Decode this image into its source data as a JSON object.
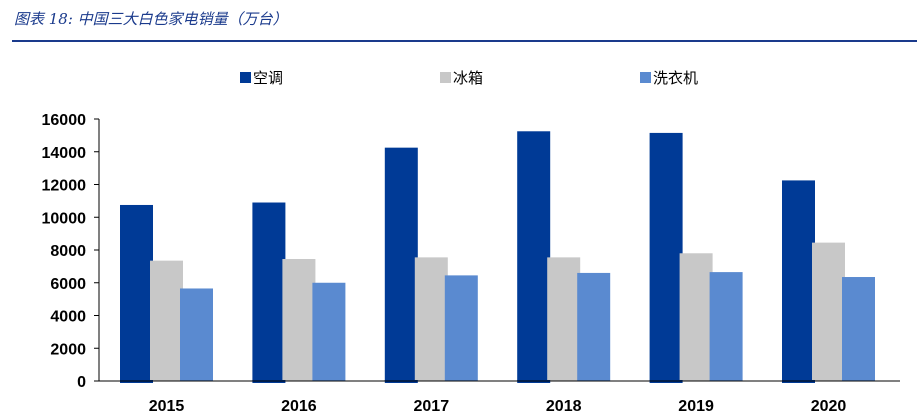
{
  "figure": {
    "title": "图表 18:  中国三大白色家电销量（万台）"
  },
  "chart_data": {
    "type": "bar",
    "categories": [
      "2015",
      "2016",
      "2017",
      "2018",
      "2019",
      "2020"
    ],
    "series": [
      {
        "name": "空调",
        "color": "#003a96",
        "values": [
          10750,
          10900,
          14250,
          15250,
          15150,
          12250
        ]
      },
      {
        "name": "冰箱",
        "color": "#c8c8c8",
        "values": [
          7350,
          7450,
          7550,
          7550,
          7800,
          8450
        ]
      },
      {
        "name": "洗衣机",
        "color": "#5a8ad0",
        "values": [
          5650,
          6000,
          6450,
          6600,
          6650,
          6350
        ]
      }
    ],
    "yticks": [
      0,
      2000,
      4000,
      6000,
      8000,
      10000,
      12000,
      14000,
      16000
    ],
    "ylim": [
      0,
      16000
    ],
    "legend_position": "top",
    "grid": false
  }
}
